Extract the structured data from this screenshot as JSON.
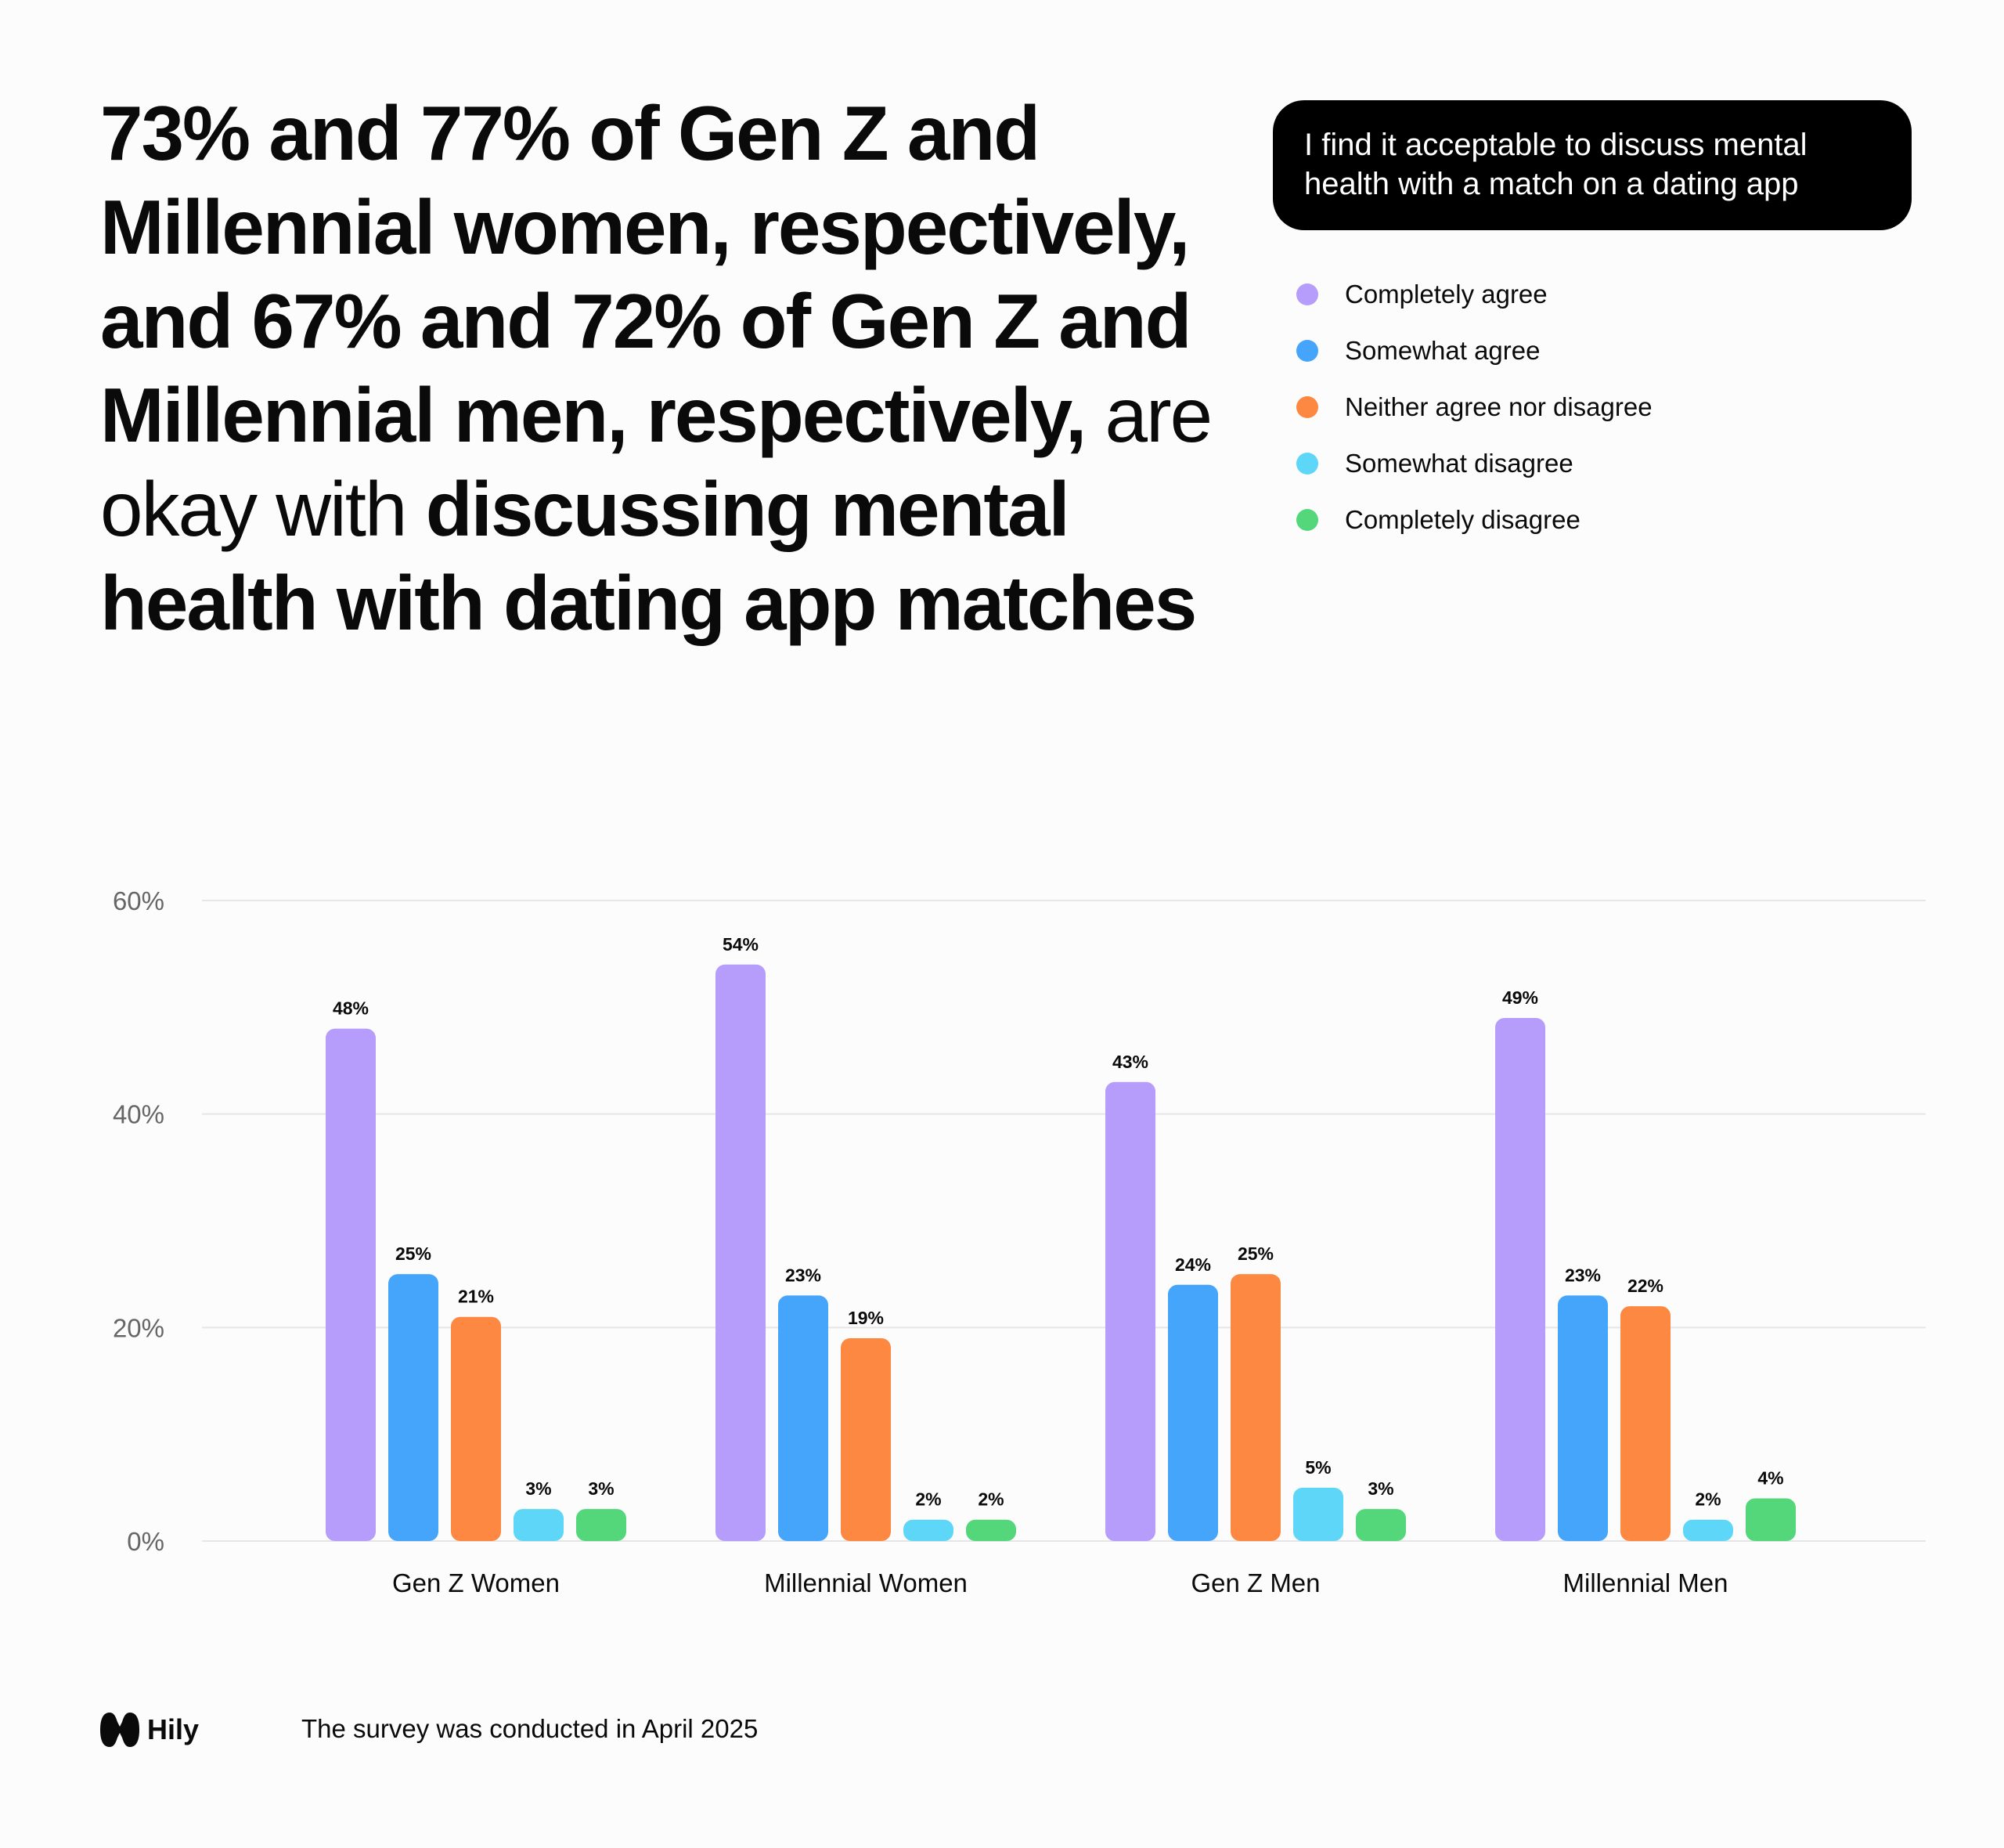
{
  "headline": {
    "segments": [
      {
        "text": "73% and 77% of Gen Z and Millennial women, respectively,  and 67% and 72% of Gen Z and Millennial men, respectively,",
        "bold": true
      },
      {
        "text": " are okay with ",
        "bold": false
      },
      {
        "text": "discussing mental health with dating app matches",
        "bold": true
      }
    ]
  },
  "question": "I find it acceptable to discuss mental health with a match on a dating app",
  "legend": [
    {
      "label": "Completely agree",
      "color": "#b69cfb"
    },
    {
      "label": "Somewhat agree",
      "color": "#45a5fb"
    },
    {
      "label": "Neither agree nor disagree",
      "color": "#fd8841"
    },
    {
      "label": "Somewhat disagree",
      "color": "#5dd6f8"
    },
    {
      "label": "Completely disagree",
      "color": "#54d77b"
    }
  ],
  "chart_data": {
    "type": "bar",
    "categories": [
      "Gen Z Women",
      "Millennial Women",
      "Gen Z Men",
      "Millennial Men"
    ],
    "series": [
      {
        "name": "Completely agree",
        "values": [
          48,
          54,
          43,
          49
        ],
        "labels": [
          "48%",
          "54%",
          "43%",
          "49%"
        ],
        "color": "#b69cfb"
      },
      {
        "name": "Somewhat agree",
        "values": [
          25,
          23,
          24,
          23
        ],
        "labels": [
          "25%",
          "23%",
          "24%",
          "23%"
        ],
        "color": "#45a5fb"
      },
      {
        "name": "Neither agree nor disagree",
        "values": [
          21,
          19,
          25,
          22
        ],
        "labels": [
          "21%",
          "19%",
          "25%",
          "22%"
        ],
        "color": "#fd8841"
      },
      {
        "name": "Somewhat disagree",
        "values": [
          3,
          2,
          5,
          2
        ],
        "labels": [
          "3%",
          "2%",
          "5%",
          "2%"
        ],
        "color": "#5dd6f8"
      },
      {
        "name": "Completely disagree",
        "values": [
          3,
          2,
          3,
          4
        ],
        "labels": [
          "3%",
          "2%",
          "3%",
          "4%"
        ],
        "color": "#54d77b"
      }
    ],
    "yticks": [
      0,
      20,
      40,
      60
    ],
    "ytick_labels": [
      "0%",
      "20%",
      "40%",
      "60%"
    ],
    "ylim": [
      0,
      60
    ],
    "grid": true,
    "legend_position": "top-right"
  },
  "footer": {
    "brand": "Hily",
    "note": "The survey was conducted in April 2025"
  }
}
